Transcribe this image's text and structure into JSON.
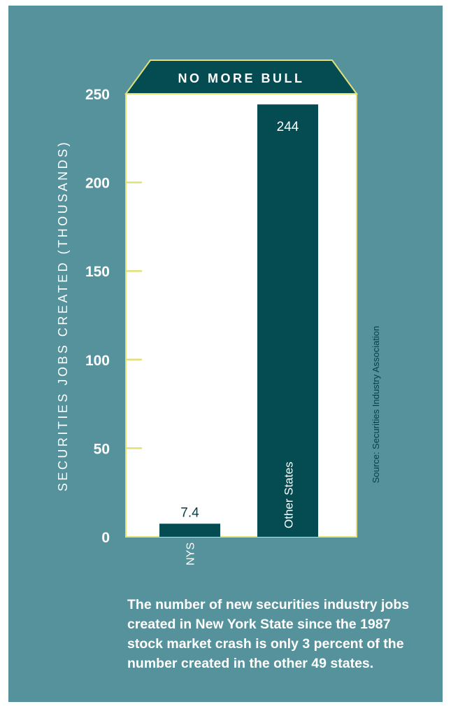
{
  "colors": {
    "background": "#55929b",
    "bar": "#044b52",
    "axis": "#e3e07a",
    "text_dark": "#063e44",
    "text_light": "#ffffff"
  },
  "chart_data": {
    "type": "bar",
    "title": "NO MORE BULL",
    "ylabel": "SECURITIES JOBS CREATED (THOUSANDS)",
    "xlabel": "",
    "ylim": [
      0,
      250
    ],
    "yticks": [
      0,
      50,
      100,
      150,
      200,
      250
    ],
    "categories": [
      "NYS",
      "Other States"
    ],
    "values": [
      7.4,
      244
    ],
    "value_labels": [
      "7.4",
      "244"
    ],
    "grid": false,
    "source": "Source: Securities Industry Association"
  },
  "caption": "The number of new securities industry jobs created in New York State since the 1987 stock market crash is only 3 percent of the number created in the other 49 states."
}
